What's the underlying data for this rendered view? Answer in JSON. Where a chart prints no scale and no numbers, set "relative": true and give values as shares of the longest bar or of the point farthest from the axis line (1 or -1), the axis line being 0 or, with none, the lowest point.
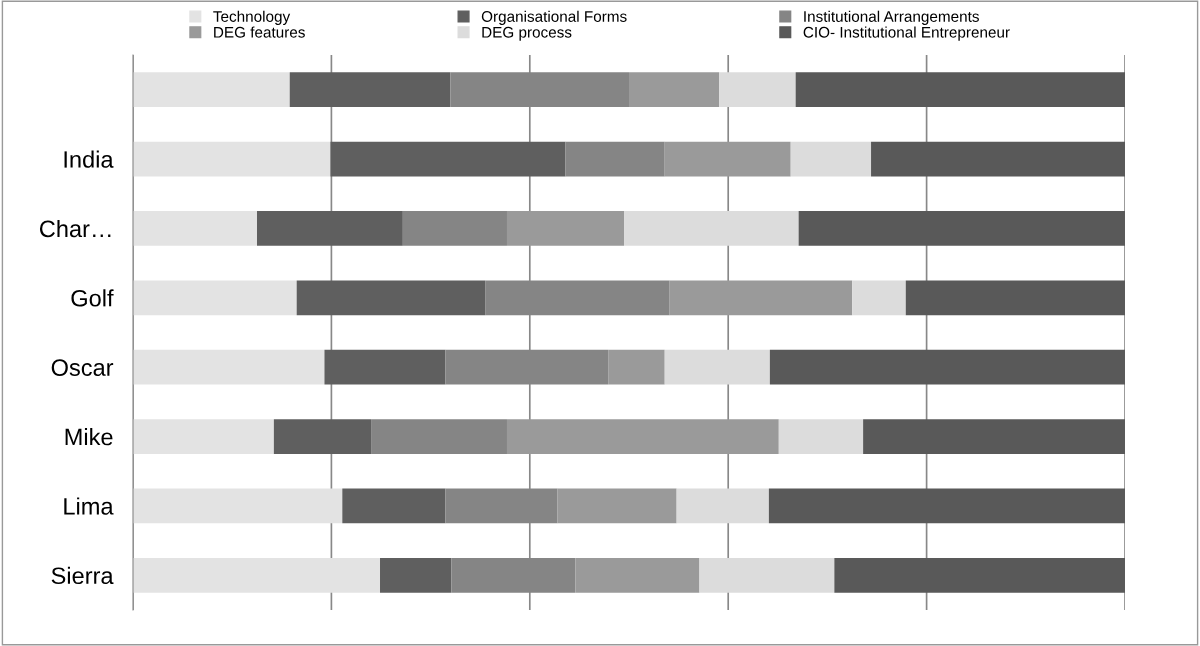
{
  "chart_data": {
    "type": "bar",
    "orientation": "horizontal",
    "stacked": true,
    "relative": true,
    "grid": "x",
    "legend": "top",
    "categories": [
      null,
      "India",
      "Char…",
      "Golf",
      "Oscar",
      "Mike",
      "Lima",
      "Sierra"
    ],
    "series": [
      {
        "name": "Technology",
        "color": "#e3e3e3",
        "values": [
          0.158,
          0.199,
          0.125,
          0.165,
          0.193,
          0.142,
          0.211,
          0.249
        ]
      },
      {
        "name": "Organisational Forms",
        "color": "#5f5f5f",
        "values": [
          0.162,
          0.237,
          0.147,
          0.19,
          0.122,
          0.098,
          0.104,
          0.072
        ]
      },
      {
        "name": "Institutional Arrangements",
        "color": "#858585",
        "values": [
          0.18,
          0.1,
          0.105,
          0.186,
          0.164,
          0.137,
          0.113,
          0.125
        ]
      },
      {
        "name": "DEG features",
        "color": "#9a9a9a",
        "values": [
          0.091,
          0.127,
          0.118,
          0.184,
          0.057,
          0.274,
          0.12,
          0.125
        ]
      },
      {
        "name": "DEG process",
        "color": "#dcdcdc",
        "values": [
          0.077,
          0.081,
          0.176,
          0.054,
          0.106,
          0.085,
          0.093,
          0.136
        ]
      },
      {
        "name": "CIO- Institutional Entrepreneur",
        "color": "#595959",
        "values": [
          0.332,
          0.256,
          0.329,
          0.221,
          0.358,
          0.264,
          0.359,
          0.293
        ]
      }
    ]
  }
}
